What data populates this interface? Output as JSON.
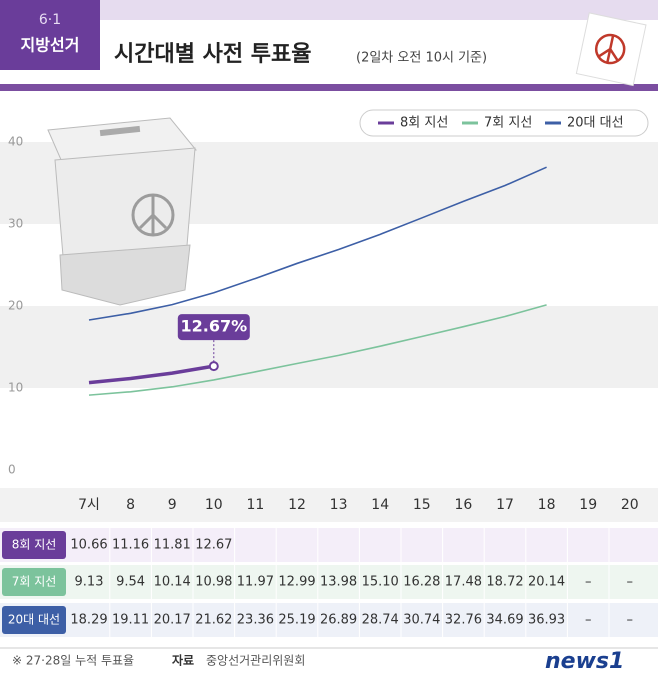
{
  "chart_data": {
    "type": "line",
    "badge_top": "6·1",
    "badge_bottom": "지방선거",
    "title": "시간대별 사전 투표율",
    "subtitle": "(2일차 오전 10시 기준)",
    "categories": [
      "7시",
      "8",
      "9",
      "10",
      "11",
      "12",
      "13",
      "14",
      "15",
      "16",
      "17",
      "18",
      "19",
      "20"
    ],
    "series": [
      {
        "name": "8회 지선",
        "color": "#6a3d9a",
        "values": [
          10.66,
          11.16,
          11.81,
          12.67,
          null,
          null,
          null,
          null,
          null,
          null,
          null,
          null,
          null,
          null
        ],
        "value_labels": [
          "10.66",
          "11.16",
          "11.81",
          "12.67",
          null,
          null,
          null,
          null,
          null,
          null,
          null,
          null,
          null,
          null
        ]
      },
      {
        "name": "7회 지선",
        "color": "#7cc39c",
        "values": [
          9.13,
          9.54,
          10.14,
          10.98,
          11.97,
          12.99,
          13.98,
          15.1,
          16.28,
          17.48,
          18.72,
          20.14,
          null,
          null
        ],
        "value_labels": [
          "9.13",
          "9.54",
          "10.14",
          "10.98",
          "11.97",
          "12.99",
          "13.98",
          "15.10",
          "16.28",
          "17.48",
          "18.72",
          "20.14",
          "–",
          "–"
        ]
      },
      {
        "name": "20대 대선",
        "color": "#3d5fa6",
        "values": [
          18.29,
          19.11,
          20.17,
          21.62,
          23.36,
          25.19,
          26.89,
          28.74,
          30.74,
          32.76,
          34.69,
          36.93,
          null,
          null
        ],
        "value_labels": [
          "18.29",
          "19.11",
          "20.17",
          "21.62",
          "23.36",
          "25.19",
          "26.89",
          "28.74",
          "30.74",
          "32.76",
          "34.69",
          "36.93",
          "–",
          "–"
        ]
      }
    ],
    "ylim": [
      0,
      40
    ],
    "yticks": [
      0,
      10,
      20,
      30,
      40
    ],
    "annotation": "12.67%",
    "footnote": "※ 27·28일 누적 투표율",
    "source_label": "자료",
    "source": "중앙선거관리위원회",
    "logo": "news1"
  }
}
